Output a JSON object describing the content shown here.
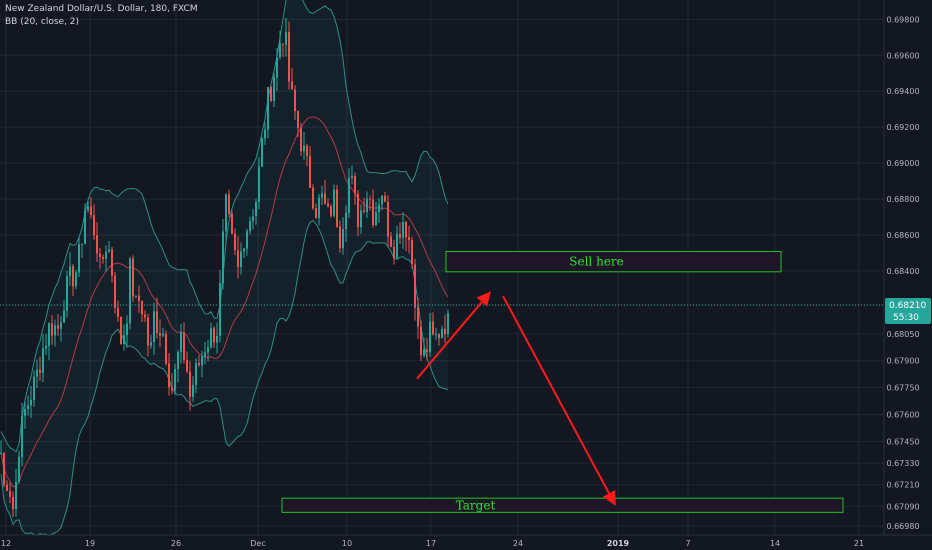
{
  "header": {
    "symbol_line": "New Zealand Dollar/U.S. Dollar, 180, FXCM",
    "indicator_line": "BB (20, close, 2)"
  },
  "price_badge": {
    "value": "0.68210",
    "countdown": "55:30"
  },
  "annotations": {
    "sell_label": "Sell here",
    "target_label": "Target"
  },
  "colors": {
    "background": "#131722",
    "grid": "#232735",
    "up": "#26a69a",
    "down": "#ef5350",
    "bb_band": "#2a8f84",
    "bb_basis": "#b23a48",
    "annotation_box": "#22c322",
    "annotation_text": "#2ee52e",
    "arrow": "#ff1a1a",
    "price_badge": "#26a69a"
  },
  "chart_data": {
    "type": "candlestick",
    "title": "New Zealand Dollar/U.S. Dollar, 180, FXCM",
    "indicator": "BB (20, close, 2)",
    "x_ticks": [
      "12",
      "19",
      "26",
      "Dec",
      "10",
      "17",
      "24",
      "2019",
      "7",
      "14",
      "21"
    ],
    "y_ticks": [
      "0.69800",
      "0.69600",
      "0.69400",
      "0.69200",
      "0.69000",
      "0.68800",
      "0.68600",
      "0.68400",
      "0.68210",
      "0.68050",
      "0.67900",
      "0.67750",
      "0.67600",
      "0.67450",
      "0.67330",
      "0.67210",
      "0.67090",
      "0.66980"
    ],
    "ylim": [
      0.6693,
      0.6988
    ],
    "last_price": 0.6821,
    "close_path": [
      [
        0,
        0.6745
      ],
      [
        4,
        0.672
      ],
      [
        8,
        0.6725
      ],
      [
        14,
        0.6705
      ],
      [
        18,
        0.674
      ],
      [
        24,
        0.676
      ],
      [
        30,
        0.677
      ],
      [
        36,
        0.678
      ],
      [
        42,
        0.6795
      ],
      [
        50,
        0.681
      ],
      [
        58,
        0.6808
      ],
      [
        64,
        0.6825
      ],
      [
        70,
        0.6835
      ],
      [
        76,
        0.684
      ],
      [
        80,
        0.685
      ],
      [
        86,
        0.688
      ],
      [
        90,
        0.687
      ],
      [
        96,
        0.686
      ],
      [
        100,
        0.684
      ],
      [
        106,
        0.6855
      ],
      [
        110,
        0.685
      ],
      [
        116,
        0.682
      ],
      [
        120,
        0.68
      ],
      [
        126,
        0.681
      ],
      [
        130,
        0.684
      ],
      [
        136,
        0.682
      ],
      [
        140,
        0.6825
      ],
      [
        146,
        0.681
      ],
      [
        150,
        0.679
      ],
      [
        154,
        0.6815
      ],
      [
        158,
        0.681
      ],
      [
        164,
        0.6805
      ],
      [
        168,
        0.6785
      ],
      [
        172,
        0.6775
      ],
      [
        176,
        0.6785
      ],
      [
        180,
        0.68
      ],
      [
        186,
        0.679
      ],
      [
        190,
        0.677
      ],
      [
        194,
        0.678
      ],
      [
        200,
        0.679
      ],
      [
        206,
        0.68
      ],
      [
        212,
        0.6805
      ],
      [
        218,
        0.6808
      ],
      [
        222,
        0.685
      ],
      [
        226,
        0.6875
      ],
      [
        232,
        0.6855
      ],
      [
        238,
        0.684
      ],
      [
        244,
        0.686
      ],
      [
        250,
        0.687
      ],
      [
        256,
        0.688
      ],
      [
        262,
        0.691
      ],
      [
        268,
        0.6935
      ],
      [
        274,
        0.695
      ],
      [
        278,
        0.696
      ],
      [
        282,
        0.6975
      ],
      [
        286,
        0.6965
      ],
      [
        290,
        0.694
      ],
      [
        294,
        0.693
      ],
      [
        298,
        0.692
      ],
      [
        304,
        0.6905
      ],
      [
        310,
        0.689
      ],
      [
        316,
        0.6875
      ],
      [
        322,
        0.688
      ],
      [
        328,
        0.687
      ],
      [
        334,
        0.688
      ],
      [
        340,
        0.686
      ],
      [
        346,
        0.688
      ],
      [
        350,
        0.6895
      ],
      [
        354,
        0.688
      ],
      [
        358,
        0.687
      ],
      [
        362,
        0.6875
      ],
      [
        366,
        0.6885
      ],
      [
        370,
        0.688
      ],
      [
        374,
        0.687
      ],
      [
        378,
        0.688
      ],
      [
        382,
        0.6885
      ],
      [
        386,
        0.687
      ],
      [
        390,
        0.686
      ],
      [
        394,
        0.6855
      ],
      [
        398,
        0.686
      ],
      [
        402,
        0.687
      ],
      [
        406,
        0.6865
      ],
      [
        410,
        0.6855
      ],
      [
        414,
        0.6835
      ],
      [
        418,
        0.6805
      ],
      [
        422,
        0.679
      ],
      [
        426,
        0.6795
      ],
      [
        430,
        0.6805
      ],
      [
        434,
        0.68
      ],
      [
        438,
        0.6805
      ],
      [
        442,
        0.681
      ],
      [
        446,
        0.6812
      ],
      [
        450,
        0.6821
      ]
    ],
    "annotations": [
      {
        "type": "rectangle",
        "label": "Sell here",
        "price_top": 0.68508,
        "price_bottom": 0.68395,
        "x_from_tick": "10",
        "x_to_tick": "14"
      },
      {
        "type": "rectangle",
        "label": "Target",
        "price_top": 0.67135,
        "price_bottom": 0.67056,
        "x_from_tick": "12",
        "x_to_tick": "21"
      },
      {
        "type": "arrow",
        "from": [
          "17",
          0.678
        ],
        "to": [
          "24",
          0.6828
        ]
      },
      {
        "type": "arrow",
        "from": [
          "24",
          0.6826
        ],
        "to": [
          "2019",
          0.671
        ]
      }
    ]
  }
}
